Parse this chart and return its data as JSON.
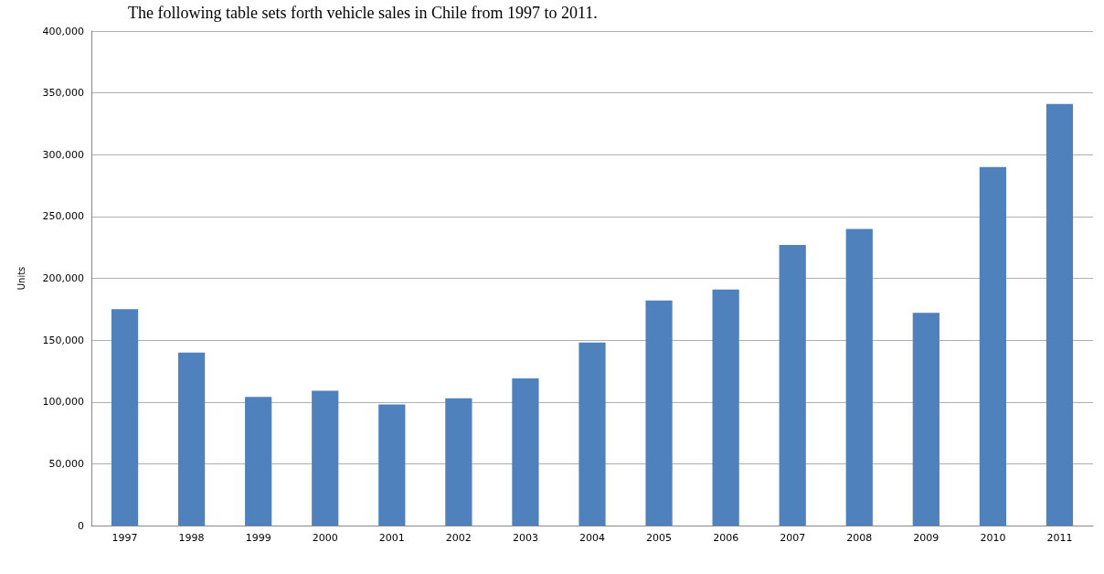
{
  "chart_data": {
    "type": "bar",
    "title": "The following table sets forth vehicle sales in Chile from 1997 to 2011.",
    "ylabel": "Units",
    "categories": [
      "1997",
      "1998",
      "1999",
      "2000",
      "2001",
      "2002",
      "2003",
      "2004",
      "2005",
      "2006",
      "2007",
      "2008",
      "2009",
      "2010",
      "2011"
    ],
    "values": [
      175000,
      140000,
      104000,
      109000,
      98000,
      103000,
      119000,
      148000,
      182000,
      191000,
      227000,
      240000,
      172000,
      290000,
      341000
    ],
    "color": "#4f81bd",
    "ylim": [
      0,
      400000
    ],
    "yticks": [
      0,
      {
        "value": 50000,
        "label": "50,000"
      },
      {
        "value": 100000,
        "label": "100,000"
      },
      {
        "value": 150000,
        "label": "150,000"
      },
      {
        "value": 200000,
        "label": "200,000"
      },
      {
        "value": 250000,
        "label": "250,000"
      },
      {
        "value": 300000,
        "label": "300,000"
      },
      {
        "value": 350000,
        "label": "350,000"
      },
      {
        "value": 400000,
        "label": "400,000"
      }
    ],
    "grid": "y"
  }
}
